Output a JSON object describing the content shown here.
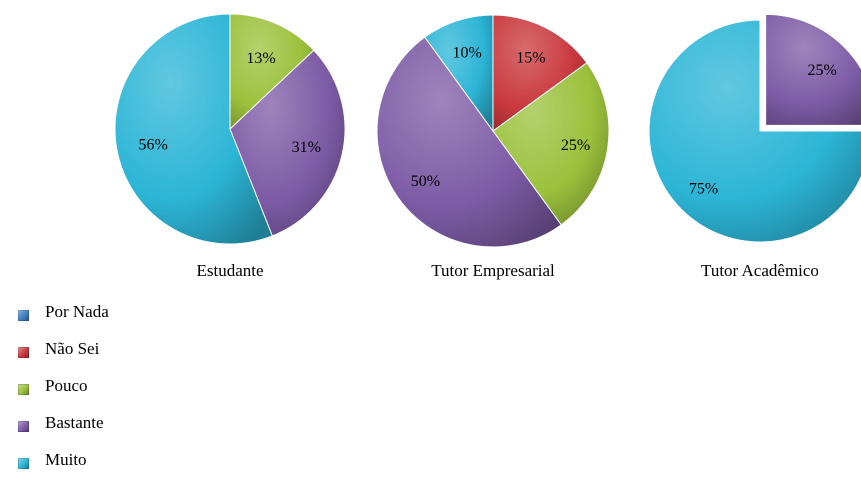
{
  "colors": {
    "Por Nada": "#3e7fc1",
    "Não Sei": "#c9393e",
    "Pouco": "#9bc13c",
    "Bastante": "#7d5ba6",
    "Muito": "#2cb5d6"
  },
  "legend": [
    {
      "label": "Por Nada",
      "color": "#3e7fc1"
    },
    {
      "label": "Não Sei",
      "color": "#c9393e"
    },
    {
      "label": "Pouco",
      "color": "#9bc13c"
    },
    {
      "label": "Bastante",
      "color": "#7d5ba6"
    },
    {
      "label": "Muito",
      "color": "#2cb5d6"
    }
  ],
  "chart_data": [
    {
      "type": "pie",
      "title": "Estudante",
      "slices": [
        {
          "category": "Pouco",
          "value": 13,
          "label": "13%"
        },
        {
          "category": "Bastante",
          "value": 31,
          "label": "31%"
        },
        {
          "category": "Muito",
          "value": 56,
          "label": "56%"
        }
      ]
    },
    {
      "type": "pie",
      "title": "Tutor Empresarial",
      "slices": [
        {
          "category": "Não Sei",
          "value": 15,
          "label": "15%"
        },
        {
          "category": "Pouco",
          "value": 25,
          "label": "25%"
        },
        {
          "category": "Bastante",
          "value": 50,
          "label": "50%"
        },
        {
          "category": "Muito",
          "value": 10,
          "label": "10%"
        }
      ]
    },
    {
      "type": "pie",
      "title": "Tutor Acadêmico",
      "slices": [
        {
          "category": "Bastante",
          "value": 25,
          "label": "25%"
        },
        {
          "category": "Muito",
          "value": 75,
          "label": "75%"
        }
      ]
    }
  ]
}
